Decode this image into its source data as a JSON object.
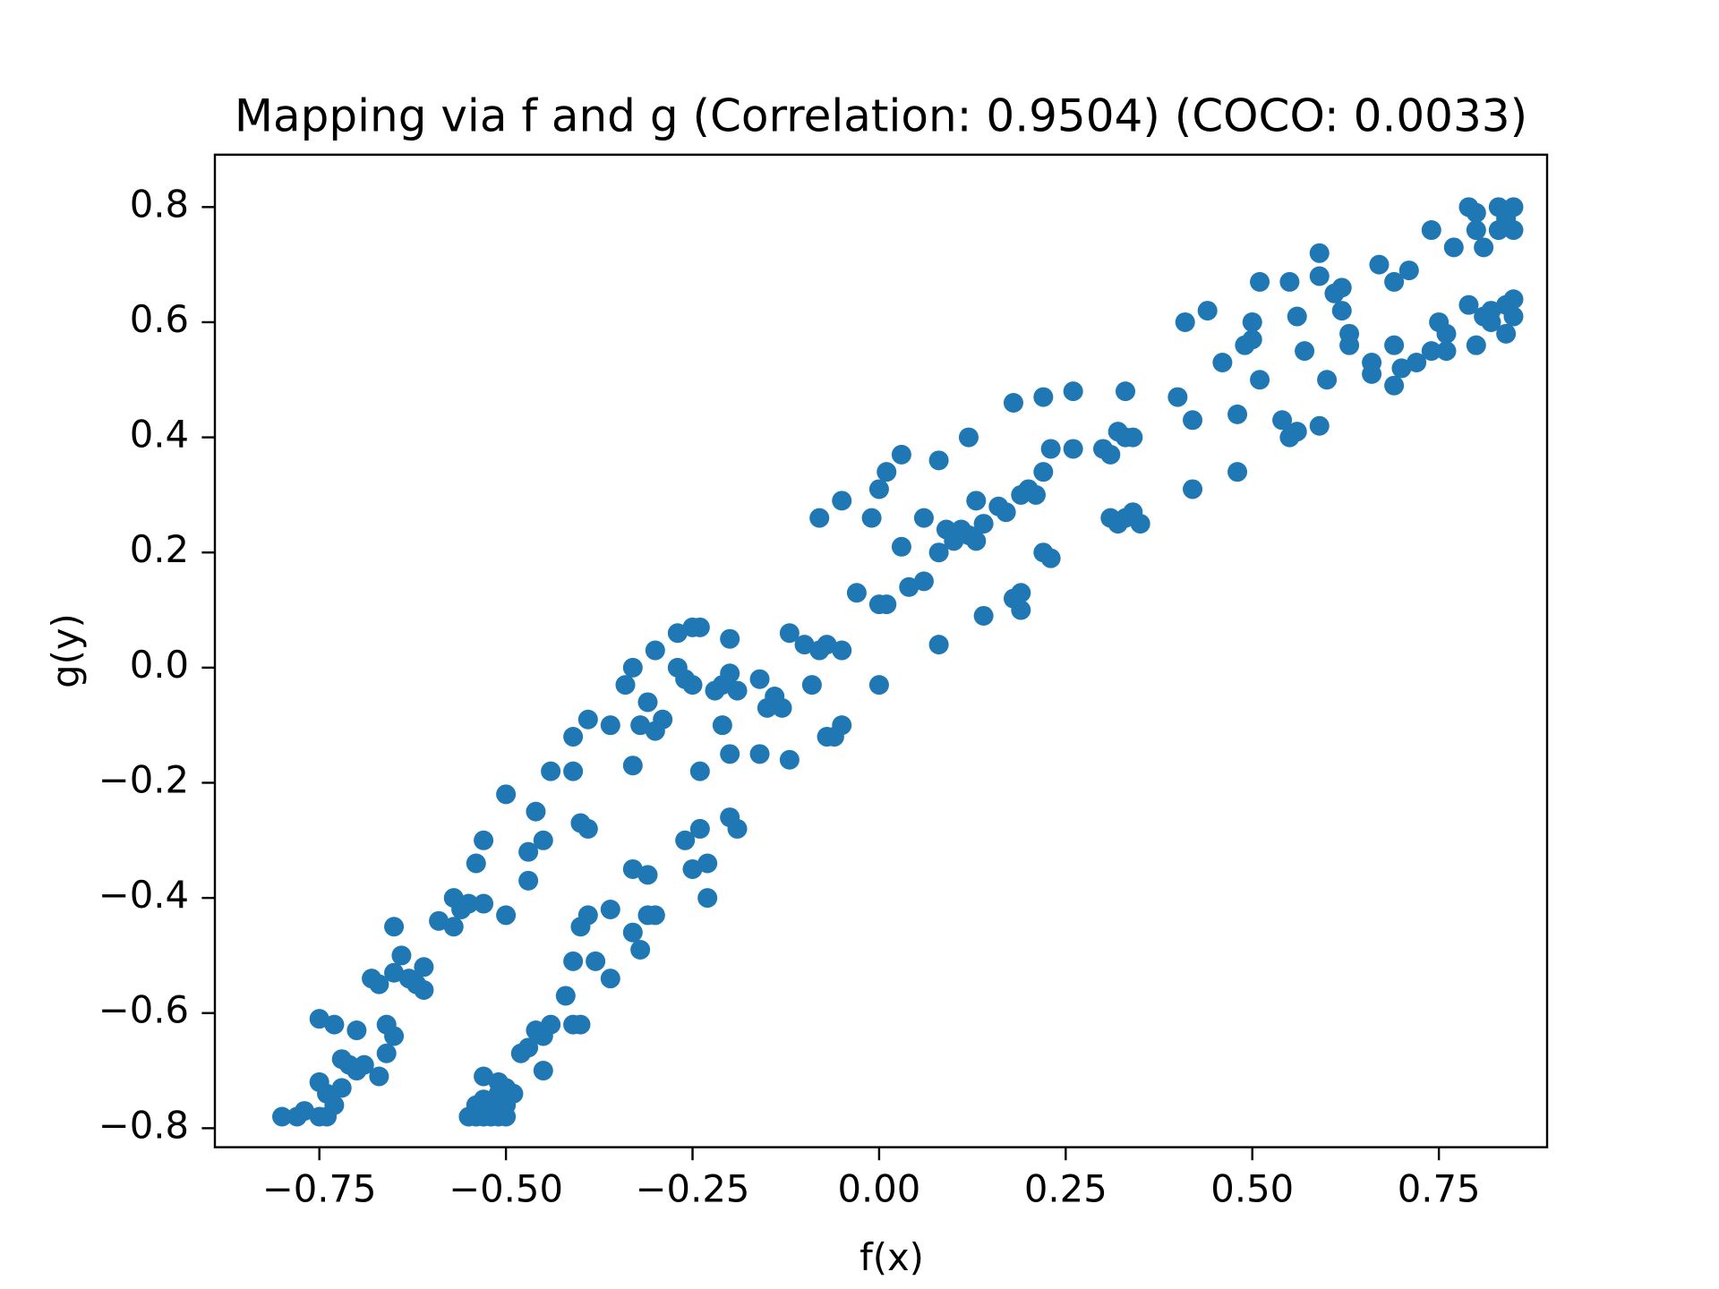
{
  "chart_data": {
    "type": "scatter",
    "title": "Mapping via f and g (Correlation: 0.9504) (COCO: 0.0033)",
    "x_label": "f(x)",
    "y_label": "g(y)",
    "color": "#1f77b4",
    "xlim": [
      -0.89,
      0.895
    ],
    "ylim": [
      -0.833,
      0.891
    ],
    "xticks": [
      {
        "value": -0.75,
        "label": "−0.75"
      },
      {
        "value": -0.5,
        "label": "−0.50"
      },
      {
        "value": -0.25,
        "label": "−0.25"
      },
      {
        "value": 0,
        "label": "0.00"
      },
      0.25,
      {
        "value": 0.5,
        "label": "0.50"
      },
      0.75
    ],
    "yticks": [
      {
        "value": -0.8,
        "label": "−0.8"
      },
      {
        "value": -0.6,
        "label": "−0.6"
      },
      {
        "value": -0.4,
        "label": "−0.4"
      },
      {
        "value": -0.2,
        "label": "−0.2"
      },
      {
        "value": 0,
        "label": "0.0"
      },
      0.2,
      0.4,
      0.6,
      0.8
    ],
    "x": [
      -0.8,
      -0.77,
      -0.78,
      -0.75,
      -0.74,
      -0.73,
      -0.75,
      -0.74,
      -0.72,
      -0.72,
      -0.71,
      -0.7,
      -0.69,
      -0.67,
      -0.66,
      -0.65,
      -0.66,
      -0.75,
      -0.73,
      -0.7,
      -0.67,
      -0.68,
      -0.65,
      -0.64,
      -0.63,
      -0.62,
      -0.61,
      -0.61,
      -0.65,
      -0.59,
      -0.57,
      -0.56,
      -0.57,
      -0.55,
      -0.53,
      -0.5,
      -0.54,
      -0.53,
      -0.5,
      -0.47,
      -0.47,
      -0.46,
      -0.45,
      -0.44,
      -0.41,
      -0.41,
      -0.39,
      -0.36,
      -0.4,
      -0.39,
      -0.33,
      -0.34,
      -0.33,
      -0.3,
      -0.31,
      -0.32,
      -0.3,
      -0.29,
      -0.27,
      -0.25,
      -0.24,
      -0.27,
      -0.26,
      -0.25,
      -0.22,
      -0.21,
      -0.2,
      -0.2,
      -0.19,
      -0.21,
      -0.2,
      -0.24,
      -0.16,
      -0.15,
      -0.14,
      -0.13,
      -0.16,
      -0.12,
      -0.12,
      -0.1,
      -0.08,
      -0.07,
      -0.05,
      -0.09,
      -0.07,
      -0.06,
      -0.05,
      -0.08,
      -0.05,
      -0.01,
      -0.03,
      0.0,
      0.01,
      0.0,
      0.0,
      0.01,
      0.03,
      0.03,
      0.04,
      0.06,
      0.06,
      0.08,
      0.08,
      0.09,
      0.1,
      0.11,
      0.12,
      0.13,
      0.13,
      0.14,
      0.14,
      0.17,
      0.16,
      0.08,
      0.12,
      0.18,
      0.18,
      0.19,
      0.19,
      0.19,
      0.2,
      0.21,
      0.22,
      0.23,
      0.22,
      0.26,
      0.26,
      0.22,
      0.23,
      0.3,
      0.31,
      0.32,
      0.33,
      0.34,
      0.33,
      0.31,
      0.32,
      0.33,
      0.34,
      0.35,
      0.4,
      0.42,
      0.42,
      0.41,
      0.44,
      0.46,
      0.48,
      0.48,
      0.49,
      0.5,
      0.5,
      0.51,
      0.51,
      0.54,
      0.56,
      0.55,
      0.55,
      0.56,
      0.57,
      0.59,
      0.59,
      0.59,
      0.6,
      0.61,
      0.62,
      0.62,
      0.63,
      0.63,
      0.66,
      0.66,
      0.67,
      0.69,
      0.69,
      0.69,
      0.7,
      0.71,
      0.72,
      0.74,
      0.74,
      0.75,
      0.76,
      0.76,
      0.77,
      0.79,
      0.79,
      0.8,
      0.8,
      0.81,
      0.8,
      0.81,
      0.82,
      0.83,
      0.84,
      0.83,
      0.84,
      0.85,
      0.85,
      0.82,
      0.84,
      0.85,
      0.84,
      0.85,
      -0.55,
      -0.54,
      -0.53,
      -0.52,
      -0.51,
      -0.5,
      -0.54,
      -0.53,
      -0.52,
      -0.51,
      -0.5,
      -0.53,
      -0.51,
      -0.5,
      -0.49,
      -0.48,
      -0.47,
      -0.46,
      -0.45,
      -0.44,
      -0.45,
      -0.42,
      -0.41,
      -0.4,
      -0.41,
      -0.38,
      -0.36,
      -0.4,
      -0.39,
      -0.36,
      -0.33,
      -0.33,
      -0.32,
      -0.31,
      -0.3,
      -0.31,
      -0.26,
      -0.25,
      -0.24,
      -0.23,
      -0.23,
      -0.2,
      -0.19
    ],
    "values": [
      -0.78,
      -0.77,
      -0.78,
      -0.78,
      -0.78,
      -0.76,
      -0.72,
      -0.74,
      -0.73,
      -0.68,
      -0.69,
      -0.7,
      -0.69,
      -0.71,
      -0.67,
      -0.64,
      -0.62,
      -0.61,
      -0.62,
      -0.63,
      -0.55,
      -0.54,
      -0.53,
      -0.5,
      -0.54,
      -0.55,
      -0.52,
      -0.56,
      -0.45,
      -0.44,
      -0.45,
      -0.42,
      -0.4,
      -0.41,
      -0.41,
      -0.43,
      -0.34,
      -0.3,
      -0.22,
      -0.32,
      -0.37,
      -0.25,
      -0.3,
      -0.18,
      -0.18,
      -0.12,
      -0.09,
      -0.1,
      -0.27,
      -0.28,
      -0.17,
      -0.03,
      0.0,
      0.03,
      -0.06,
      -0.1,
      -0.11,
      -0.09,
      0.06,
      0.07,
      0.07,
      0.0,
      -0.02,
      -0.03,
      -0.04,
      -0.03,
      -0.01,
      0.05,
      -0.04,
      -0.1,
      -0.15,
      -0.18,
      -0.02,
      -0.07,
      -0.05,
      -0.07,
      -0.15,
      -0.16,
      0.06,
      0.04,
      0.03,
      0.04,
      0.03,
      -0.03,
      -0.12,
      -0.12,
      -0.1,
      0.26,
      0.29,
      0.26,
      0.13,
      0.11,
      0.11,
      -0.03,
      0.31,
      0.34,
      0.37,
      0.21,
      0.14,
      0.15,
      0.26,
      0.04,
      0.2,
      0.24,
      0.22,
      0.24,
      0.23,
      0.22,
      0.29,
      0.25,
      0.09,
      0.27,
      0.28,
      0.36,
      0.4,
      0.46,
      0.12,
      0.13,
      0.1,
      0.3,
      0.31,
      0.3,
      0.34,
      0.38,
      0.47,
      0.48,
      0.38,
      0.2,
      0.19,
      0.38,
      0.37,
      0.41,
      0.4,
      0.4,
      0.48,
      0.26,
      0.25,
      0.26,
      0.27,
      0.25,
      0.47,
      0.43,
      0.31,
      0.6,
      0.62,
      0.53,
      0.44,
      0.34,
      0.56,
      0.57,
      0.6,
      0.67,
      0.5,
      0.43,
      0.41,
      0.4,
      0.67,
      0.61,
      0.55,
      0.42,
      0.72,
      0.68,
      0.5,
      0.65,
      0.62,
      0.66,
      0.58,
      0.56,
      0.53,
      0.51,
      0.7,
      0.67,
      0.49,
      0.56,
      0.52,
      0.69,
      0.53,
      0.55,
      0.76,
      0.6,
      0.58,
      0.55,
      0.73,
      0.8,
      0.63,
      0.79,
      0.76,
      0.73,
      0.56,
      0.61,
      0.6,
      0.8,
      0.79,
      0.76,
      0.78,
      0.8,
      0.76,
      0.62,
      0.63,
      0.64,
      0.58,
      0.61,
      -0.78,
      -0.78,
      -0.78,
      -0.78,
      -0.78,
      -0.78,
      -0.76,
      -0.75,
      -0.76,
      -0.74,
      -0.73,
      -0.71,
      -0.72,
      -0.76,
      -0.74,
      -0.67,
      -0.66,
      -0.63,
      -0.64,
      -0.62,
      -0.7,
      -0.57,
      -0.62,
      -0.62,
      -0.51,
      -0.51,
      -0.54,
      -0.45,
      -0.43,
      -0.42,
      -0.35,
      -0.46,
      -0.49,
      -0.43,
      -0.43,
      -0.36,
      -0.3,
      -0.35,
      -0.28,
      -0.34,
      -0.4,
      -0.26,
      -0.28
    ]
  }
}
